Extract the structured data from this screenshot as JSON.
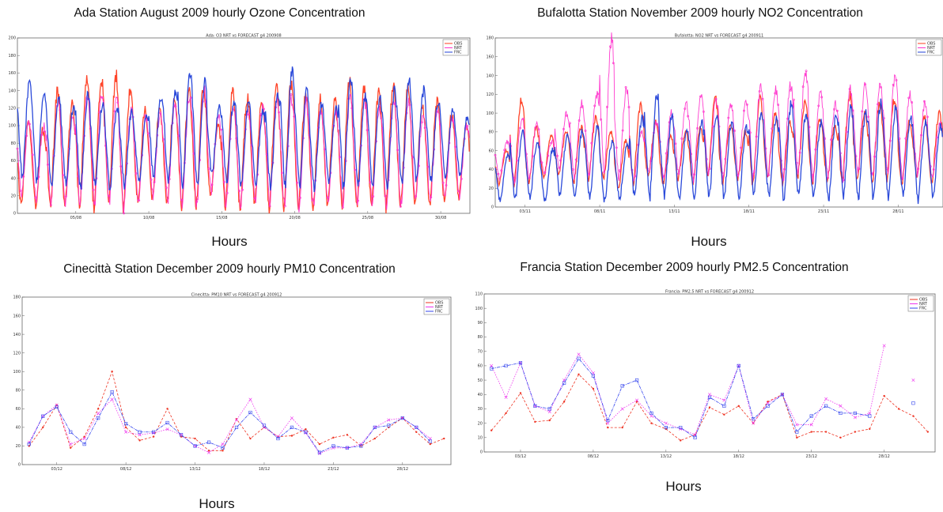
{
  "panels": [
    {
      "heading": "Ada Station August 2009 hourly Ozone Concentration",
      "xlabel": "Hours"
    },
    {
      "heading": "Bufalotta  Station November 2009 hourly NO2 Concentration",
      "xlabel": "Hours"
    },
    {
      "heading": "Cinecittà Station December 2009 hourly PM10 Concentration",
      "xlabel": "Hours"
    },
    {
      "heading": "Francia Station December 2009 hourly PM2.5 Concentration",
      "xlabel": "Hours"
    }
  ],
  "chart_data": [
    {
      "type": "line",
      "title": "Ada: O3  NRT vs FORECAST  g4 200908",
      "ylim": [
        0,
        200
      ],
      "yticks": [
        0,
        20,
        40,
        60,
        80,
        100,
        120,
        140,
        160,
        180,
        200
      ],
      "xlim": [
        0,
        744
      ],
      "x_tick_labels": [
        "05/08",
        "10/08",
        "15/08",
        "20/08",
        "25/08",
        "30/08"
      ],
      "x_tick_hours": [
        96,
        216,
        336,
        456,
        576,
        696
      ],
      "legend": "top-right",
      "legend_entries": [
        "OBS",
        "NRT",
        "FRC"
      ],
      "series_colors": {
        "OBS": "#ff3b1f",
        "NRT": "#ff33cc",
        "FRC": "#2040d8"
      },
      "series": [
        {
          "name": "OBS",
          "daily_max": [
            102,
            96,
            140,
            124,
            150,
            155,
            158,
            142,
            118,
            120,
            130,
            142,
            146,
            100,
            138,
            132,
            128,
            142,
            148,
            136,
            130,
            128,
            150,
            140,
            136,
            146,
            140,
            120,
            128,
            112,
            100
          ],
          "daily_min": [
            10,
            8,
            5,
            10,
            6,
            4,
            6,
            5,
            12,
            15,
            8,
            6,
            5,
            20,
            8,
            6,
            10,
            6,
            8,
            6,
            6,
            10,
            6,
            8,
            10,
            6,
            8,
            12,
            10,
            15,
            18
          ]
        },
        {
          "name": "NRT",
          "daily_max": [
            105,
            100,
            125,
            110,
            135,
            140,
            130,
            120,
            110,
            115,
            125,
            135,
            140,
            110,
            120,
            115,
            120,
            130,
            130,
            125,
            118,
            115,
            130,
            125,
            120,
            128,
            125,
            112,
            118,
            108,
            100
          ],
          "daily_min": [
            20,
            15,
            10,
            12,
            8,
            10,
            10,
            6,
            15,
            20,
            10,
            8,
            8,
            25,
            10,
            10,
            12,
            8,
            10,
            8,
            8,
            12,
            10,
            10,
            12,
            8,
            10,
            15,
            12,
            18,
            20
          ]
        },
        {
          "name": "FRC",
          "daily_max": [
            148,
            140,
            130,
            120,
            135,
            125,
            120,
            115,
            110,
            130,
            140,
            162,
            150,
            120,
            130,
            125,
            118,
            135,
            162,
            140,
            125,
            120,
            150,
            135,
            130,
            140,
            150,
            140,
            128,
            118,
            110
          ],
          "daily_min": [
            40,
            35,
            30,
            35,
            25,
            30,
            28,
            30,
            35,
            40,
            35,
            30,
            28,
            45,
            35,
            30,
            32,
            28,
            30,
            30,
            28,
            35,
            30,
            30,
            32,
            30,
            30,
            35,
            38,
            40,
            42
          ]
        }
      ]
    },
    {
      "type": "line",
      "title": "Bufalotta: NO2  NRT vs FORECAST  g4 200911",
      "ylim": [
        0,
        180
      ],
      "yticks": [
        0,
        20,
        40,
        60,
        80,
        100,
        120,
        140,
        160,
        180
      ],
      "xlim": [
        0,
        720
      ],
      "x_tick_labels": [
        "03/11",
        "08/11",
        "13/11",
        "18/11",
        "23/11",
        "28/11"
      ],
      "x_tick_hours": [
        48,
        168,
        288,
        408,
        528,
        648
      ],
      "legend": "top-right",
      "legend_entries": [
        "OBS",
        "NRT",
        "FRC"
      ],
      "series_colors": {
        "OBS": "#ff3b1f",
        "NRT": "#ff33cc",
        "FRC": "#2040d8"
      },
      "series": [
        {
          "name": "OBS",
          "daily_max": [
            60,
            115,
            85,
            75,
            80,
            85,
            95,
            80,
            70,
            110,
            90,
            75,
            80,
            85,
            115,
            90,
            80,
            115,
            100,
            90,
            110,
            95,
            85,
            120,
            100,
            110,
            115,
            90,
            95,
            100
          ],
          "daily_min": [
            25,
            20,
            25,
            30,
            35,
            25,
            30,
            30,
            20,
            25,
            30,
            25,
            30,
            25,
            30,
            25,
            30,
            25,
            30,
            25,
            30,
            25,
            30,
            25,
            30,
            25,
            30,
            25,
            30,
            25
          ]
        },
        {
          "name": "NRT",
          "daily_max": [
            70,
            95,
            90,
            70,
            100,
            110,
            120,
            178,
            125,
            80,
            90,
            100,
            110,
            120,
            115,
            110,
            110,
            130,
            125,
            130,
            145,
            120,
            110,
            125,
            130,
            130,
            140,
            120,
            110,
            90
          ],
          "daily_min": [
            30,
            25,
            30,
            35,
            40,
            30,
            35,
            35,
            30,
            28,
            35,
            30,
            35,
            30,
            35,
            30,
            35,
            30,
            35,
            30,
            35,
            30,
            35,
            30,
            35,
            30,
            35,
            30,
            35,
            30
          ]
        },
        {
          "name": "FRC",
          "daily_max": [
            55,
            80,
            70,
            60,
            75,
            80,
            85,
            70,
            65,
            95,
            120,
            95,
            80,
            90,
            100,
            90,
            85,
            100,
            95,
            110,
            100,
            90,
            95,
            105,
            100,
            110,
            105,
            95,
            90,
            85
          ],
          "daily_min": [
            5,
            8,
            10,
            6,
            12,
            8,
            10,
            6,
            8,
            10,
            8,
            12,
            10,
            8,
            12,
            10,
            8,
            12,
            10,
            8,
            12,
            10,
            8,
            12,
            10,
            8,
            12,
            10,
            8,
            10
          ]
        }
      ]
    },
    {
      "type": "line",
      "title": "Cinecitta: PM10  NRT vs FORECAST  g4 200912",
      "ylim": [
        0,
        180
      ],
      "yticks": [
        0,
        20,
        40,
        60,
        80,
        100,
        120,
        140,
        160,
        180
      ],
      "xlim": [
        0.5,
        31.5
      ],
      "x_tick_labels": [
        "03/12",
        "08/12",
        "13/12",
        "18/12",
        "23/12",
        "28/12"
      ],
      "x_tick_values": [
        3,
        8,
        13,
        18,
        23,
        28
      ],
      "legend": "top-right",
      "legend_entries": [
        "OBS",
        "NRT",
        "FRC"
      ],
      "series_colors": {
        "OBS": "#ee3322",
        "NRT": "#ee33ee",
        "FRC": "#3344ee"
      },
      "series": [
        {
          "name": "OBS",
          "x": [
            1,
            2,
            3,
            4,
            5,
            6,
            7,
            8,
            9,
            10,
            11,
            12,
            13,
            14,
            15,
            16,
            17,
            18,
            19,
            20,
            21,
            22,
            23,
            24,
            25,
            26,
            27,
            28,
            29,
            30,
            31
          ],
          "values": [
            20,
            40,
            64,
            18,
            30,
            60,
            100,
            40,
            26,
            30,
            60,
            30,
            28,
            15,
            15,
            49,
            28,
            40,
            30,
            31,
            38,
            22,
            29,
            32,
            20,
            28,
            40,
            50,
            35,
            22,
            28
          ]
        },
        {
          "name": "NRT",
          "x": [
            1,
            2,
            3,
            4,
            5,
            6,
            7,
            8,
            9,
            10,
            11,
            12,
            13,
            14,
            15,
            16,
            17,
            18,
            19,
            20,
            21,
            22,
            23,
            24,
            25,
            26,
            27,
            28,
            29,
            30
          ],
          "values": [
            24,
            52,
            64,
            22,
            28,
            55,
            70,
            35,
            32,
            34,
            38,
            32,
            20,
            13,
            22,
            48,
            70,
            40,
            30,
            50,
            34,
            12,
            18,
            18,
            22,
            40,
            48,
            50,
            40,
            28
          ]
        },
        {
          "name": "FRC",
          "x": [
            1,
            2,
            3,
            4,
            5,
            6,
            7,
            8,
            9,
            10,
            11,
            12,
            13,
            14,
            15,
            16,
            17,
            18,
            19,
            20,
            21,
            22,
            23,
            24,
            25,
            26,
            27,
            28,
            29,
            30
          ],
          "values": [
            22,
            52,
            62,
            35,
            22,
            50,
            78,
            44,
            35,
            35,
            45,
            32,
            20,
            24,
            18,
            40,
            56,
            42,
            28,
            40,
            35,
            13,
            20,
            18,
            20,
            40,
            42,
            50,
            40,
            25
          ]
        }
      ]
    },
    {
      "type": "line",
      "title": "Francia: PM2.5  NRT vs FORECAST  g4 200912",
      "ylim": [
        0,
        110
      ],
      "yticks": [
        0,
        10,
        20,
        30,
        40,
        50,
        60,
        70,
        80,
        90,
        100,
        110
      ],
      "xlim": [
        0.5,
        31.5
      ],
      "x_tick_labels": [
        "03/12",
        "08/12",
        "13/12",
        "18/12",
        "23/12",
        "28/12"
      ],
      "x_tick_values": [
        3,
        8,
        13,
        18,
        23,
        28
      ],
      "legend": "top-right",
      "legend_entries": [
        "OBS",
        "NRT",
        "FRC"
      ],
      "series_colors": {
        "OBS": "#ee3322",
        "NRT": "#ee33ee",
        "FRC": "#3344ee"
      },
      "series": [
        {
          "name": "OBS",
          "x": [
            1,
            2,
            3,
            4,
            5,
            6,
            7,
            8,
            9,
            10,
            11,
            12,
            13,
            14,
            15,
            16,
            17,
            18,
            19,
            20,
            21,
            22,
            23,
            24,
            25,
            26,
            27,
            28,
            29,
            30,
            31
          ],
          "values": [
            15,
            27,
            41,
            21,
            22,
            35,
            54,
            44,
            17,
            17,
            35,
            20,
            16,
            8,
            12,
            31,
            26,
            32,
            20,
            35,
            40,
            10,
            14,
            14,
            10,
            14,
            16,
            39,
            30,
            25,
            14
          ]
        },
        {
          "name": "NRT",
          "x": [
            1,
            2,
            3,
            4,
            5,
            6,
            7,
            8,
            9,
            10,
            11,
            12,
            13,
            14,
            15,
            16,
            17,
            18,
            19,
            20,
            21,
            22,
            23,
            24,
            25,
            26,
            27,
            28,
            29,
            30
          ],
          "values": [
            60,
            38,
            62,
            32,
            28,
            50,
            68,
            55,
            20,
            30,
            36,
            25,
            20,
            16,
            12,
            40,
            36,
            60,
            20,
            34,
            40,
            19,
            19,
            37,
            32,
            24,
            27,
            74,
            null,
            50
          ]
        },
        {
          "name": "FRC",
          "x": [
            1,
            2,
            3,
            4,
            5,
            6,
            7,
            8,
            9,
            10,
            11,
            12,
            13,
            14,
            15,
            16,
            17,
            18,
            19,
            20,
            21,
            22,
            23,
            24,
            25,
            26,
            27,
            28,
            29,
            30
          ],
          "values": [
            58,
            60,
            62,
            32,
            30,
            48,
            65,
            53,
            22,
            46,
            50,
            27,
            17,
            17,
            10,
            38,
            32,
            60,
            23,
            32,
            40,
            14,
            25,
            32,
            27,
            27,
            25,
            null,
            null,
            34
          ]
        }
      ]
    }
  ]
}
